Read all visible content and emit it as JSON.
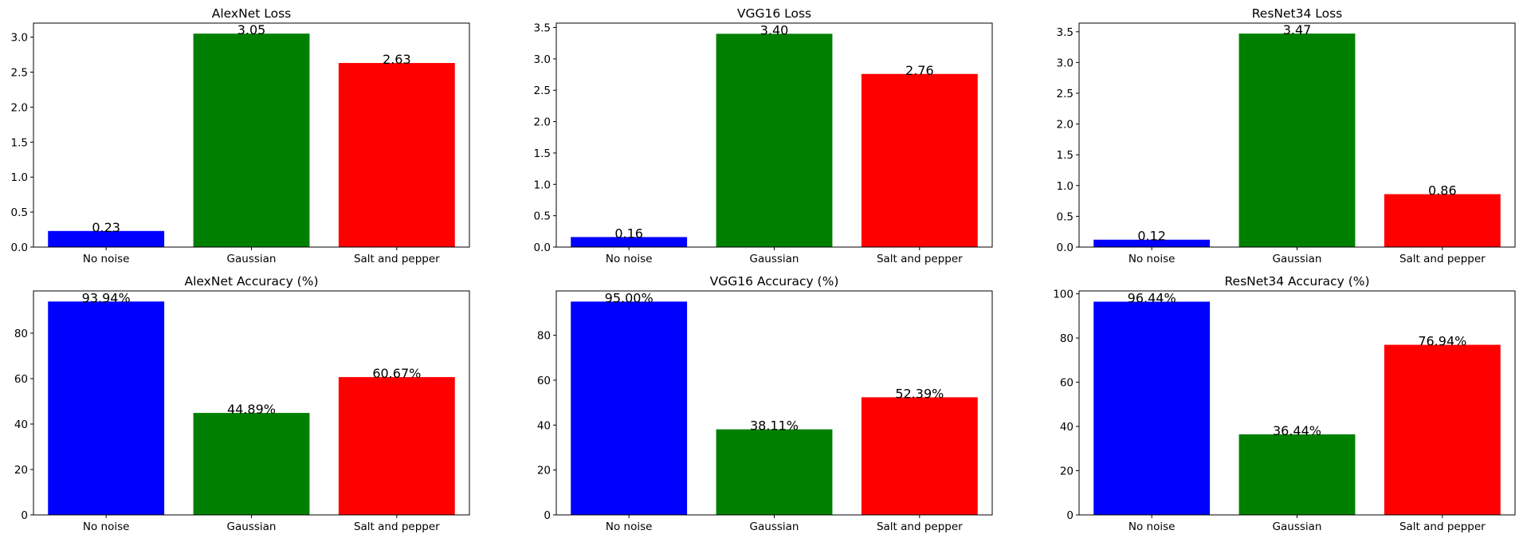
{
  "chart_data": [
    {
      "type": "bar",
      "title": "AlexNet Loss",
      "categories": [
        "No noise",
        "Gaussian",
        "Salt and pepper"
      ],
      "values": [
        0.23,
        3.05,
        2.63
      ],
      "value_labels": [
        "0.23",
        "3.05",
        "2.63"
      ],
      "colors": [
        "#0000ff",
        "#008000",
        "#ff0000"
      ],
      "ylim": [
        0,
        3.2
      ],
      "yticks": [
        0.0,
        0.5,
        1.0,
        1.5,
        2.0,
        2.5,
        3.0
      ],
      "ytick_labels": [
        "0.0",
        "0.5",
        "1.0",
        "1.5",
        "2.0",
        "2.5",
        "3.0"
      ],
      "xlabel": "",
      "ylabel": "",
      "grid": false
    },
    {
      "type": "bar",
      "title": "VGG16 Loss",
      "categories": [
        "No noise",
        "Gaussian",
        "Salt and pepper"
      ],
      "values": [
        0.16,
        3.4,
        2.76
      ],
      "value_labels": [
        "0.16",
        "3.40",
        "2.76"
      ],
      "colors": [
        "#0000ff",
        "#008000",
        "#ff0000"
      ],
      "ylim": [
        0,
        3.57
      ],
      "yticks": [
        0.0,
        0.5,
        1.0,
        1.5,
        2.0,
        2.5,
        3.0,
        3.5
      ],
      "ytick_labels": [
        "0.0",
        "0.5",
        "1.0",
        "1.5",
        "2.0",
        "2.5",
        "3.0",
        "3.5"
      ],
      "xlabel": "",
      "ylabel": "",
      "grid": false
    },
    {
      "type": "bar",
      "title": "ResNet34 Loss",
      "categories": [
        "No noise",
        "Gaussian",
        "Salt and pepper"
      ],
      "values": [
        0.12,
        3.47,
        0.86
      ],
      "value_labels": [
        "0.12",
        "3.47",
        "0.86"
      ],
      "colors": [
        "#0000ff",
        "#008000",
        "#ff0000"
      ],
      "ylim": [
        0,
        3.64
      ],
      "yticks": [
        0.0,
        0.5,
        1.0,
        1.5,
        2.0,
        2.5,
        3.0,
        3.5
      ],
      "ytick_labels": [
        "0.0",
        "0.5",
        "1.0",
        "1.5",
        "2.0",
        "2.5",
        "3.0",
        "3.5"
      ],
      "xlabel": "",
      "ylabel": "",
      "grid": false
    },
    {
      "type": "bar",
      "title": "AlexNet Accuracy (%)",
      "categories": [
        "No noise",
        "Gaussian",
        "Salt and pepper"
      ],
      "values": [
        93.94,
        44.89,
        60.67
      ],
      "value_labels": [
        "93.94%",
        "44.89%",
        "60.67%"
      ],
      "colors": [
        "#0000ff",
        "#008000",
        "#ff0000"
      ],
      "ylim": [
        0,
        98.6
      ],
      "yticks": [
        0,
        20,
        40,
        60,
        80
      ],
      "ytick_labels": [
        "0",
        "20",
        "40",
        "60",
        "80"
      ],
      "xlabel": "",
      "ylabel": "",
      "grid": false
    },
    {
      "type": "bar",
      "title": "VGG16 Accuracy (%)",
      "categories": [
        "No noise",
        "Gaussian",
        "Salt and pepper"
      ],
      "values": [
        95.0,
        38.11,
        52.39
      ],
      "value_labels": [
        "95.00%",
        "38.11%",
        "52.39%"
      ],
      "colors": [
        "#0000ff",
        "#008000",
        "#ff0000"
      ],
      "ylim": [
        0,
        99.75
      ],
      "yticks": [
        0,
        20,
        40,
        60,
        80
      ],
      "ytick_labels": [
        "0",
        "20",
        "40",
        "60",
        "80"
      ],
      "xlabel": "",
      "ylabel": "",
      "grid": false
    },
    {
      "type": "bar",
      "title": "ResNet34 Accuracy (%)",
      "categories": [
        "No noise",
        "Gaussian",
        "Salt and pepper"
      ],
      "values": [
        96.44,
        36.44,
        76.94
      ],
      "value_labels": [
        "96.44%",
        "36.44%",
        "76.94%"
      ],
      "colors": [
        "#0000ff",
        "#008000",
        "#ff0000"
      ],
      "ylim": [
        0,
        101.3
      ],
      "yticks": [
        0,
        20,
        40,
        60,
        80,
        100
      ],
      "ytick_labels": [
        "0",
        "20",
        "40",
        "60",
        "80",
        "100"
      ],
      "xlabel": "",
      "ylabel": "",
      "grid": false
    }
  ]
}
